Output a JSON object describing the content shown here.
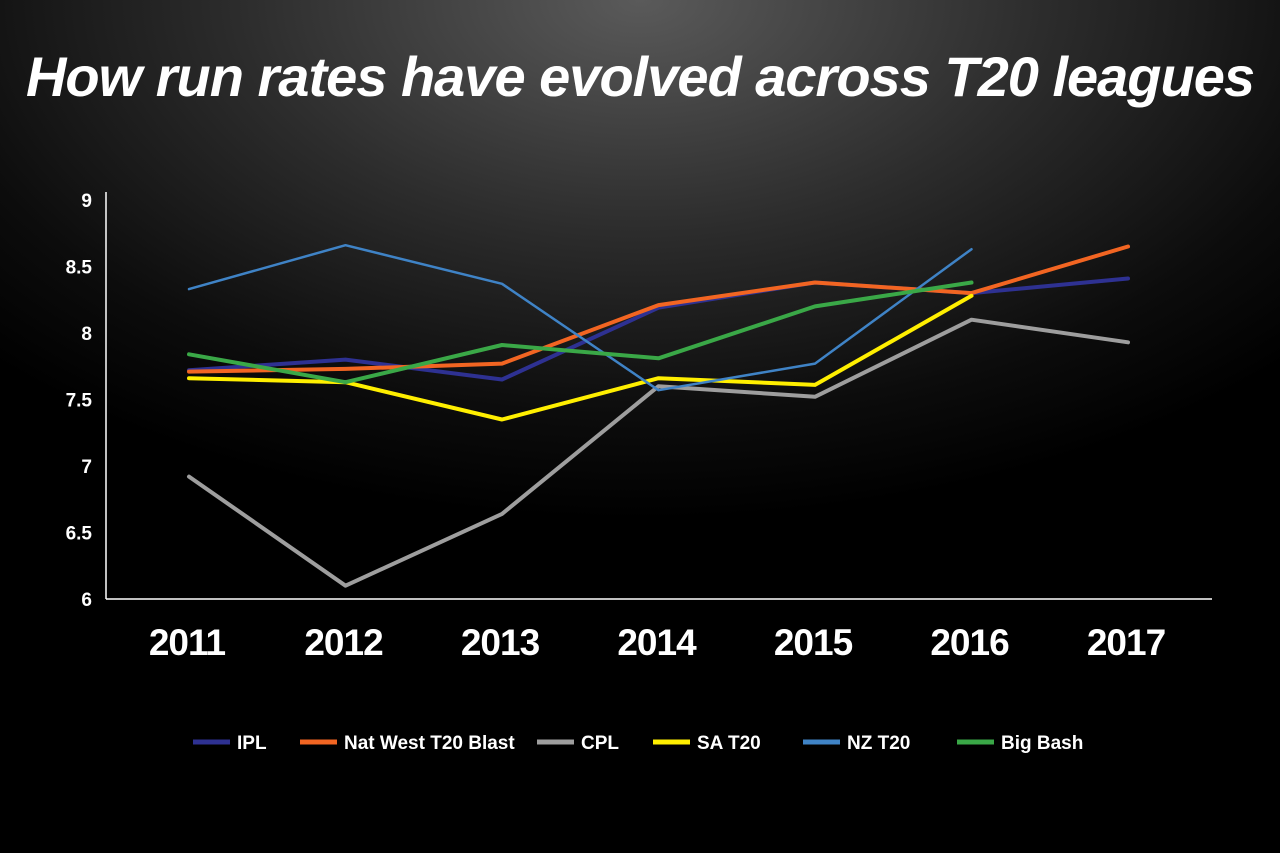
{
  "chart_data": {
    "type": "line",
    "title": "How run rates have evolved across T20 leagues",
    "xlabel": "",
    "ylabel": "",
    "x": [
      "2011",
      "2012",
      "2013",
      "2014",
      "2015",
      "2016",
      "2017"
    ],
    "ylim": [
      6,
      9
    ],
    "yticks": [
      "6",
      "6.5",
      "7",
      "7.5",
      "8",
      "8.5",
      "9"
    ],
    "grid": false,
    "legend_position": "bottom",
    "series": [
      {
        "name": "IPL",
        "color": "#2e3192",
        "values": [
          7.72,
          7.8,
          7.65,
          8.19,
          8.38,
          8.3,
          8.41
        ]
      },
      {
        "name": "Nat West T20 Blast",
        "color": "#f26522",
        "values": [
          7.71,
          7.73,
          7.77,
          8.21,
          8.38,
          8.3,
          8.65
        ]
      },
      {
        "name": "CPL",
        "color": "#9e9e9e",
        "values": [
          6.92,
          6.1,
          6.64,
          7.6,
          7.52,
          8.1,
          7.93
        ]
      },
      {
        "name": "SA T20",
        "color": "#ffef00",
        "values": [
          7.66,
          7.63,
          7.35,
          7.66,
          7.61,
          8.28,
          null
        ]
      },
      {
        "name": "NZ T20",
        "color": "#3f83c6",
        "values": [
          8.33,
          8.66,
          8.37,
          7.57,
          7.77,
          8.63,
          null
        ]
      },
      {
        "name": "Big Bash",
        "color": "#3aa847",
        "values": [
          7.84,
          7.63,
          7.91,
          7.81,
          8.2,
          8.38,
          null
        ]
      }
    ]
  }
}
